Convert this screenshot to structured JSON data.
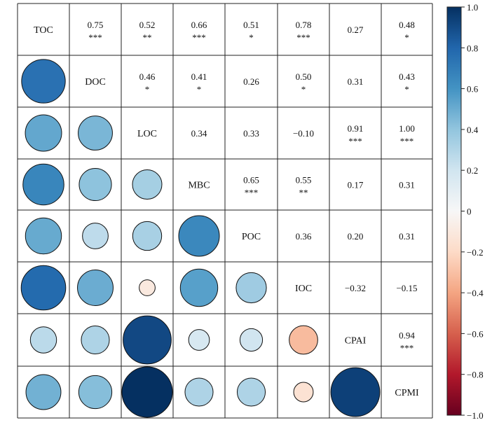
{
  "chart_data": {
    "type": "heatmap",
    "variables": [
      "TOC",
      "DOC",
      "LOC",
      "MBC",
      "POC",
      "IOC",
      "CPAI",
      "CPMI"
    ],
    "matrix": [
      [
        1.0,
        0.75,
        0.52,
        0.66,
        0.51,
        0.78,
        0.27,
        0.48
      ],
      [
        0.75,
        1.0,
        0.46,
        0.41,
        0.26,
        0.5,
        0.31,
        0.43
      ],
      [
        0.52,
        0.46,
        1.0,
        0.34,
        0.33,
        -0.1,
        0.91,
        1.0
      ],
      [
        0.66,
        0.41,
        0.34,
        1.0,
        0.65,
        0.55,
        0.17,
        0.31
      ],
      [
        0.51,
        0.26,
        0.33,
        0.65,
        1.0,
        0.36,
        0.2,
        0.31
      ],
      [
        0.78,
        0.5,
        -0.1,
        0.55,
        0.36,
        1.0,
        -0.32,
        -0.15
      ],
      [
        0.27,
        0.31,
        0.91,
        0.17,
        0.2,
        -0.32,
        1.0,
        0.94
      ],
      [
        0.48,
        0.43,
        1.0,
        0.31,
        0.31,
        -0.15,
        0.94,
        1.0
      ]
    ],
    "upper_labels": [
      [
        null,
        "0.75",
        "0.52",
        "0.66",
        "0.51",
        "0.78",
        "0.27",
        "0.48"
      ],
      [
        null,
        null,
        "0.46",
        "0.41",
        "0.26",
        "0.50",
        "0.31",
        "0.43"
      ],
      [
        null,
        null,
        null,
        "0.34",
        "0.33",
        "−0.10",
        "0.91",
        "1.00"
      ],
      [
        null,
        null,
        null,
        null,
        "0.65",
        "0.55",
        "0.17",
        "0.31"
      ],
      [
        null,
        null,
        null,
        null,
        null,
        "0.36",
        "0.20",
        "0.31"
      ],
      [
        null,
        null,
        null,
        null,
        null,
        null,
        "−0.32",
        "−0.15"
      ],
      [
        null,
        null,
        null,
        null,
        null,
        null,
        null,
        "0.94"
      ],
      [
        null,
        null,
        null,
        null,
        null,
        null,
        null,
        null
      ]
    ],
    "significance": [
      [
        "",
        "***",
        "**",
        "***",
        "*",
        "***",
        "",
        "*"
      ],
      [
        "",
        "",
        "*",
        "*",
        "",
        "*",
        "",
        "*"
      ],
      [
        "",
        "",
        "",
        "",
        "",
        "",
        "***",
        "***"
      ],
      [
        "",
        "",
        "",
        "",
        "***",
        "**",
        "",
        ""
      ],
      [
        "",
        "",
        "",
        "",
        "",
        "",
        "",
        ""
      ],
      [
        "",
        "",
        "",
        "",
        "",
        "",
        "",
        ""
      ],
      [
        "",
        "",
        "",
        "",
        "",
        "",
        "",
        "***"
      ],
      [
        "",
        "",
        "",
        "",
        "",
        "",
        "",
        ""
      ]
    ],
    "lower_display": "circles sized and colored by correlation",
    "upper_display": "correlation value with significance stars",
    "diagonal_display": "variable name",
    "colorbar": {
      "min": -1.0,
      "max": 1.0,
      "ticks": [
        "1.0",
        "0.8",
        "0.6",
        "0.4",
        "0.2",
        "0",
        "−0.2",
        "−0.4",
        "−0.6",
        "−0.8",
        "−1.0"
      ],
      "tick_values": [
        1.0,
        0.8,
        0.6,
        0.4,
        0.2,
        0,
        -0.2,
        -0.4,
        -0.6,
        -0.8,
        -1.0
      ],
      "colormap": "RdBu",
      "colors": {
        "neg1": "#67001f",
        "neg08": "#b2182b",
        "neg06": "#d6604d",
        "neg04": "#f4a582",
        "neg02": "#fddbc7",
        "zero": "#f7f7f7",
        "pos02": "#d1e5f0",
        "pos04": "#92c5de",
        "pos06": "#4393c3",
        "pos08": "#2166ac",
        "pos1": "#053061"
      }
    }
  }
}
